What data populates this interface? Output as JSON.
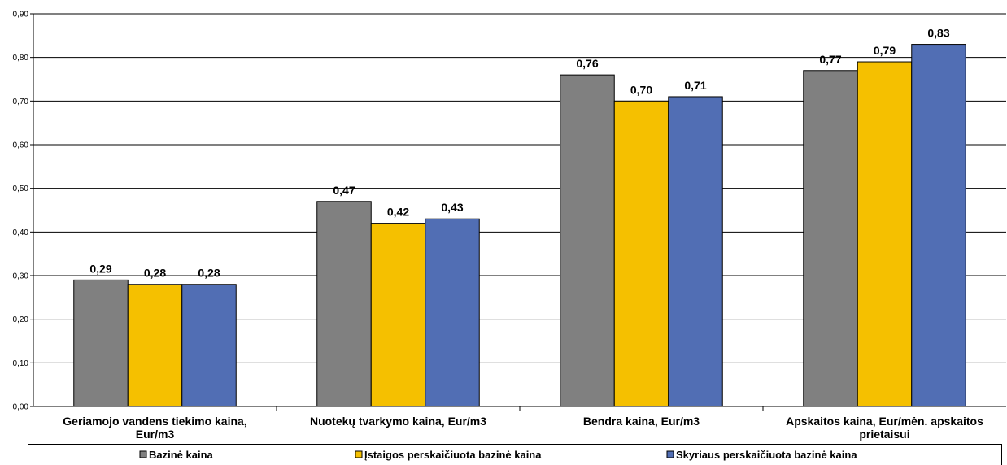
{
  "chart_data": {
    "type": "bar",
    "categories": [
      [
        "Geriamojo vandens tiekimo kaina,",
        "Eur/m3"
      ],
      [
        "Nuotekų tvarkymo kaina, Eur/m3"
      ],
      [
        "Bendra kaina, Eur/m3"
      ],
      [
        "Apskaitos kaina, Eur/mėn. apskaitos",
        "prietaisui"
      ]
    ],
    "series": [
      {
        "name": "Bazinė kaina",
        "color": "#808080",
        "values": [
          0.29,
          0.47,
          0.76,
          0.77
        ],
        "labels": [
          "0,29",
          "0,47",
          "0,76",
          "0,77"
        ]
      },
      {
        "name": "Įstaigos perskaičiuota bazinė kaina",
        "color": "#f5c000",
        "values": [
          0.28,
          0.42,
          0.7,
          0.79
        ],
        "labels": [
          "0,28",
          "0,42",
          "0,70",
          "0,79"
        ]
      },
      {
        "name": "Skyriaus perskaičiuota bazinė kaina",
        "color": "#516eb4",
        "values": [
          0.28,
          0.43,
          0.71,
          0.83
        ],
        "labels": [
          "0,28",
          "0,43",
          "0,71",
          "0,83"
        ]
      }
    ],
    "yticks": [
      "0,00",
      "0,10",
      "0,20",
      "0,30",
      "0,40",
      "0,50",
      "0,60",
      "0,70",
      "0,80",
      "0,90"
    ],
    "ylim": [
      0,
      0.9
    ],
    "grid": true,
    "legend_position": "bottom"
  }
}
